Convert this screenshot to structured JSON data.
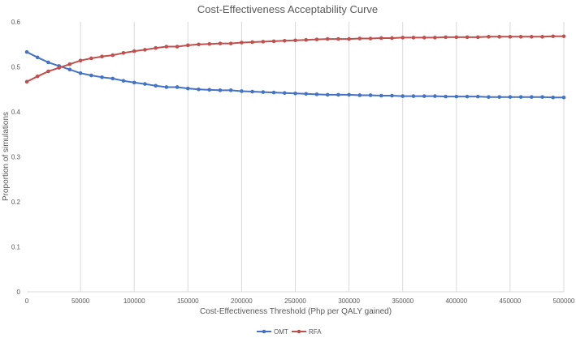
{
  "chart_data": {
    "type": "line",
    "title": "Cost-Effectiveness Acceptability Curve",
    "xlabel": "Cost-Effectiveness Threshold (Php per QALY gained)",
    "ylabel": "Proportion of simulations",
    "xlim": [
      0,
      500000
    ],
    "ylim": [
      0,
      0.6
    ],
    "grid": "vertical",
    "legend": "bottom",
    "x_ticks": [
      "0",
      "50000",
      "100000",
      "150000",
      "200000",
      "250000",
      "300000",
      "350000",
      "400000",
      "450000",
      "500000"
    ],
    "y_ticks": [
      "0",
      "0.1",
      "0.2",
      "0.3",
      "0.4",
      "0.5",
      "0.6"
    ],
    "x": [
      0,
      10000,
      20000,
      30000,
      40000,
      50000,
      60000,
      70000,
      80000,
      90000,
      100000,
      110000,
      120000,
      130000,
      140000,
      150000,
      160000,
      170000,
      180000,
      190000,
      200000,
      210000,
      220000,
      230000,
      240000,
      250000,
      260000,
      270000,
      280000,
      290000,
      300000,
      310000,
      320000,
      330000,
      340000,
      350000,
      360000,
      370000,
      380000,
      390000,
      400000,
      410000,
      420000,
      430000,
      440000,
      450000,
      460000,
      470000,
      480000,
      490000,
      500000
    ],
    "series": [
      {
        "name": "OMT",
        "color": "#4472C4",
        "values": [
          0.533,
          0.521,
          0.51,
          0.502,
          0.494,
          0.486,
          0.481,
          0.477,
          0.474,
          0.469,
          0.465,
          0.462,
          0.458,
          0.455,
          0.455,
          0.452,
          0.45,
          0.449,
          0.448,
          0.448,
          0.446,
          0.445,
          0.444,
          0.443,
          0.442,
          0.441,
          0.44,
          0.439,
          0.438,
          0.438,
          0.438,
          0.437,
          0.437,
          0.436,
          0.436,
          0.435,
          0.435,
          0.435,
          0.435,
          0.434,
          0.434,
          0.434,
          0.434,
          0.433,
          0.433,
          0.433,
          0.433,
          0.433,
          0.433,
          0.432,
          0.432
        ]
      },
      {
        "name": "RFA",
        "color": "#C0504D",
        "values": [
          0.467,
          0.479,
          0.49,
          0.498,
          0.506,
          0.514,
          0.519,
          0.523,
          0.526,
          0.531,
          0.535,
          0.538,
          0.542,
          0.545,
          0.545,
          0.548,
          0.55,
          0.551,
          0.552,
          0.552,
          0.554,
          0.555,
          0.556,
          0.557,
          0.558,
          0.559,
          0.56,
          0.561,
          0.562,
          0.562,
          0.562,
          0.563,
          0.563,
          0.564,
          0.564,
          0.565,
          0.565,
          0.565,
          0.565,
          0.566,
          0.566,
          0.566,
          0.566,
          0.567,
          0.567,
          0.567,
          0.567,
          0.567,
          0.567,
          0.568,
          0.568
        ]
      }
    ]
  }
}
